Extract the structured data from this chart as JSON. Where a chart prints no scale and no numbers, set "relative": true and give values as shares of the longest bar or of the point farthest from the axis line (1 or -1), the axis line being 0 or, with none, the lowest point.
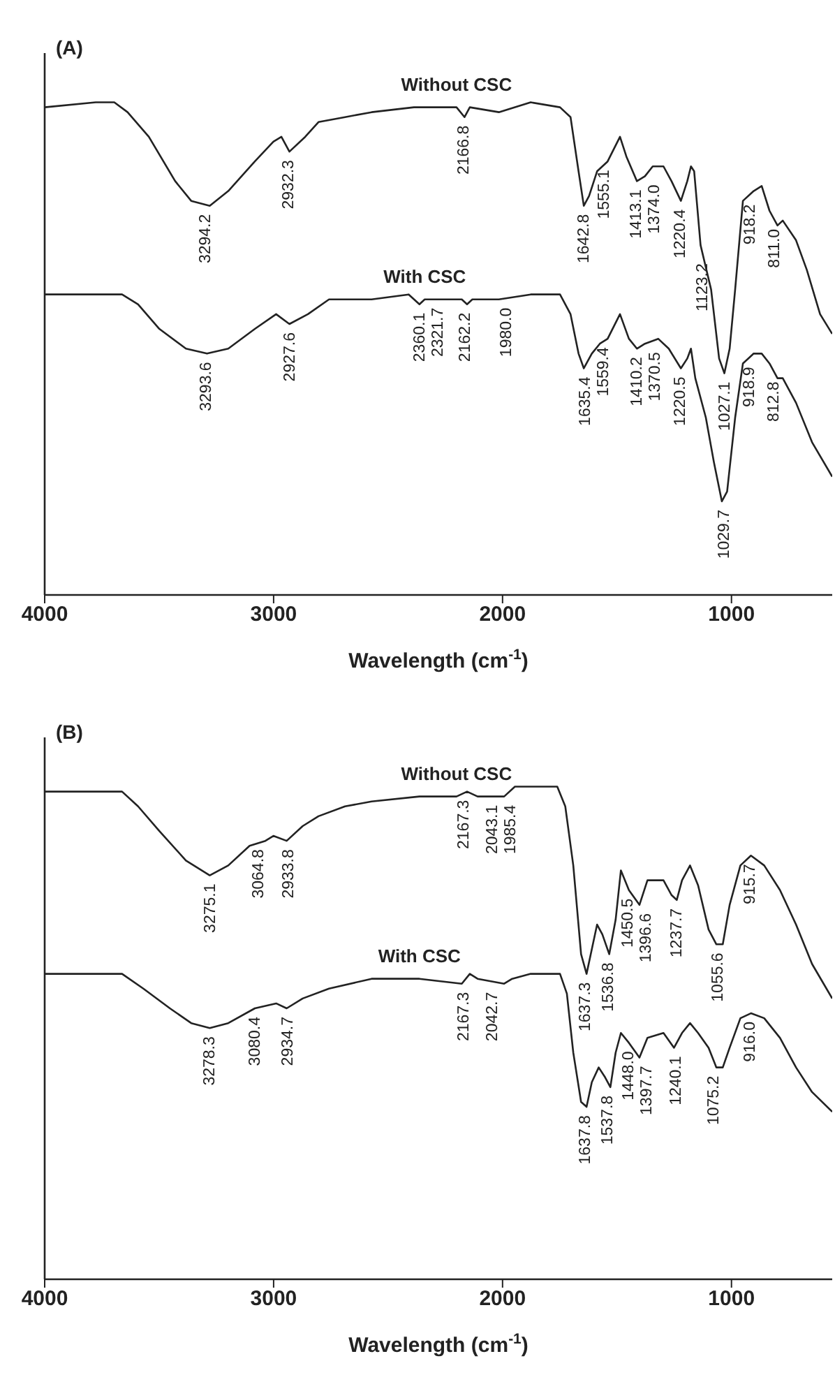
{
  "chart_data": [
    {
      "type": "line",
      "title": "(A)",
      "xlabel": "Wavelength (cm$^{-1}$)",
      "xlim": [
        4000,
        560
      ],
      "xticks": [
        4000,
        3000,
        2000,
        1000
      ],
      "relative": true,
      "tick_labels": "x",
      "series": [
        {
          "name": "Without CSC",
          "color": "#222222",
          "x": [
            4000,
            3777,
            3696,
            3638,
            3545,
            3430,
            3360,
            3279,
            3198,
            3082,
            3001,
            2966,
            2931,
            2862,
            2804,
            2688,
            2572,
            2387,
            2201,
            2166,
            2143,
            2016,
            1877,
            1749,
            1703,
            1668,
            1645,
            1622,
            1587,
            1541,
            1487,
            1459,
            1413,
            1378,
            1344,
            1297,
            1262,
            1221,
            1193,
            1177,
            1163,
            1135,
            1089,
            1054,
            1031,
            1008,
            984,
            950,
            903,
            868,
            834,
            799,
            776,
            718,
            671,
            613,
            560
          ],
          "values": [
            0.99,
            1.0,
            1.0,
            0.98,
            0.93,
            0.84,
            0.8,
            0.79,
            0.82,
            0.88,
            0.92,
            0.93,
            0.9,
            0.93,
            0.96,
            0.97,
            0.98,
            0.99,
            0.99,
            0.97,
            0.99,
            0.98,
            1.0,
            0.99,
            0.97,
            0.86,
            0.79,
            0.81,
            0.86,
            0.88,
            0.93,
            0.89,
            0.84,
            0.85,
            0.87,
            0.87,
            0.84,
            0.8,
            0.84,
            0.87,
            0.86,
            0.71,
            0.62,
            0.48,
            0.45,
            0.5,
            0.62,
            0.8,
            0.82,
            0.83,
            0.78,
            0.75,
            0.76,
            0.72,
            0.66,
            0.57,
            0.53
          ]
        },
        {
          "name": "With CSC",
          "color": "#222222",
          "x": [
            4000,
            3662,
            3592,
            3499,
            3383,
            3291,
            3198,
            3082,
            2989,
            2931,
            2850,
            2758,
            2572,
            2410,
            2363,
            2340,
            2178,
            2155,
            2132,
            2016,
            1877,
            1749,
            1703,
            1668,
            1645,
            1610,
            1575,
            1541,
            1487,
            1448,
            1413,
            1378,
            1320,
            1274,
            1221,
            1193,
            1177,
            1158,
            1112,
            1077,
            1042,
            1019,
            984,
            950,
            903,
            868,
            834,
            799,
            776,
            718,
            648,
            560
          ],
          "values": [
            0.61,
            0.61,
            0.59,
            0.54,
            0.5,
            0.49,
            0.5,
            0.54,
            0.57,
            0.55,
            0.57,
            0.6,
            0.6,
            0.61,
            0.59,
            0.6,
            0.6,
            0.59,
            0.6,
            0.6,
            0.61,
            0.61,
            0.57,
            0.49,
            0.46,
            0.49,
            0.51,
            0.52,
            0.57,
            0.52,
            0.5,
            0.51,
            0.52,
            0.5,
            0.46,
            0.48,
            0.5,
            0.44,
            0.36,
            0.27,
            0.19,
            0.21,
            0.36,
            0.47,
            0.49,
            0.49,
            0.47,
            0.44,
            0.44,
            0.39,
            0.31,
            0.24
          ]
        }
      ],
      "annotations": [
        {
          "text": "3294.2",
          "x": 3294.2,
          "y": 0.79
        },
        {
          "text": "2932.3",
          "x": 2932.3,
          "y": 0.9
        },
        {
          "text": "2166.8",
          "x": 2166.8,
          "y": 0.97
        },
        {
          "text": "1642.8",
          "x": 1642.8,
          "y": 0.79
        },
        {
          "text": "1555.1",
          "x": 1555.1,
          "y": 0.88
        },
        {
          "text": "1413.1",
          "x": 1413.1,
          "y": 0.84
        },
        {
          "text": "1374.0",
          "x": 1374.0,
          "y": 0.85
        },
        {
          "text": "1220.4",
          "x": 1220.4,
          "y": 0.8
        },
        {
          "text": "1123.2",
          "x": 1123.2,
          "y": 0.69
        },
        {
          "text": "1027.1",
          "x": 1027.1,
          "y": 0.45
        },
        {
          "text": "918.2",
          "x": 918.2,
          "y": 0.81
        },
        {
          "text": "811.0",
          "x": 811.0,
          "y": 0.76
        },
        {
          "text": "3293.6",
          "x": 3293.6,
          "y": 0.49
        },
        {
          "text": "2927.6",
          "x": 2927.6,
          "y": 0.55
        },
        {
          "text": "2360.1",
          "x": 2360.1,
          "y": 0.59
        },
        {
          "text": "2321.7",
          "x": 2321.7,
          "y": 0.6
        },
        {
          "text": "2162.2",
          "x": 2162.2,
          "y": 0.59
        },
        {
          "text": "1980.0",
          "x": 1980.0,
          "y": 0.6
        },
        {
          "text": "1635.4",
          "x": 1635.4,
          "y": 0.46
        },
        {
          "text": "1559.4",
          "x": 1559.4,
          "y": 0.52
        },
        {
          "text": "1410.2",
          "x": 1410.2,
          "y": 0.5
        },
        {
          "text": "1370.5",
          "x": 1370.5,
          "y": 0.51
        },
        {
          "text": "1220.5",
          "x": 1220.5,
          "y": 0.46
        },
        {
          "text": "1029.7",
          "x": 1029.7,
          "y": 0.19
        },
        {
          "text": "918.9",
          "x": 918.9,
          "y": 0.48
        },
        {
          "text": "812.8",
          "x": 812.8,
          "y": 0.45
        }
      ]
    },
    {
      "type": "line",
      "title": "(B)",
      "xlabel": "Wavelength (cm$^{-1}$)",
      "xlim": [
        4000,
        560
      ],
      "xticks": [
        4000,
        3000,
        2000,
        1000
      ],
      "relative": true,
      "tick_labels": "x",
      "series": [
        {
          "name": "Without CSC",
          "color": "#222222",
          "x": [
            4000,
            3662,
            3592,
            3499,
            3383,
            3279,
            3198,
            3105,
            3036,
            3001,
            2943,
            2873,
            2804,
            2688,
            2572,
            2363,
            2201,
            2155,
            2109,
            1993,
            1946,
            1877,
            1761,
            1726,
            1691,
            1657,
            1633,
            1610,
            1587,
            1564,
            1534,
            1506,
            1483,
            1448,
            1402,
            1367,
            1297,
            1262,
            1239,
            1216,
            1181,
            1146,
            1100,
            1066,
            1038,
            1008,
            961,
            915,
            857,
            788,
            718,
            648,
            560
          ],
          "values": [
            0.99,
            0.99,
            0.96,
            0.91,
            0.85,
            0.82,
            0.84,
            0.88,
            0.89,
            0.9,
            0.89,
            0.92,
            0.94,
            0.96,
            0.97,
            0.98,
            0.98,
            0.99,
            0.98,
            0.98,
            1.0,
            1.0,
            1.0,
            0.96,
            0.84,
            0.66,
            0.62,
            0.67,
            0.72,
            0.7,
            0.66,
            0.73,
            0.83,
            0.79,
            0.76,
            0.81,
            0.81,
            0.78,
            0.77,
            0.81,
            0.84,
            0.8,
            0.71,
            0.68,
            0.68,
            0.76,
            0.84,
            0.86,
            0.84,
            0.79,
            0.72,
            0.64,
            0.57
          ]
        },
        {
          "name": "With CSC",
          "color": "#222222",
          "x": [
            4000,
            3662,
            3569,
            3453,
            3360,
            3279,
            3198,
            3082,
            2989,
            2943,
            2873,
            2758,
            2572,
            2363,
            2178,
            2143,
            2109,
            1993,
            1958,
            1877,
            1749,
            1719,
            1691,
            1657,
            1633,
            1610,
            1580,
            1552,
            1529,
            1506,
            1483,
            1448,
            1402,
            1367,
            1297,
            1251,
            1216,
            1181,
            1146,
            1100,
            1066,
            1038,
            1008,
            961,
            915,
            857,
            788,
            718,
            648,
            560
          ],
          "values": [
            0.62,
            0.62,
            0.59,
            0.55,
            0.52,
            0.51,
            0.52,
            0.55,
            0.56,
            0.55,
            0.57,
            0.59,
            0.61,
            0.61,
            0.6,
            0.62,
            0.61,
            0.6,
            0.61,
            0.62,
            0.62,
            0.58,
            0.46,
            0.36,
            0.35,
            0.4,
            0.43,
            0.41,
            0.39,
            0.46,
            0.5,
            0.48,
            0.45,
            0.49,
            0.5,
            0.47,
            0.5,
            0.52,
            0.5,
            0.47,
            0.43,
            0.43,
            0.47,
            0.53,
            0.54,
            0.53,
            0.49,
            0.43,
            0.38,
            0.34
          ]
        }
      ],
      "annotations": [
        {
          "text": "3275.1",
          "x": 3275.1,
          "y": 0.82
        },
        {
          "text": "3064.8",
          "x": 3064.8,
          "y": 0.89
        },
        {
          "text": "2933.8",
          "x": 2933.8,
          "y": 0.89
        },
        {
          "text": "2167.3",
          "x": 2167.3,
          "y": 0.99
        },
        {
          "text": "2043.1",
          "x": 2043.1,
          "y": 0.98
        },
        {
          "text": "1985.4",
          "x": 1985.4,
          "y": 0.98
        },
        {
          "text": "1637.3",
          "x": 1637.3,
          "y": 0.62
        },
        {
          "text": "1536.8",
          "x": 1536.8,
          "y": 0.66
        },
        {
          "text": "1450.5",
          "x": 1450.5,
          "y": 0.79
        },
        {
          "text": "1396.6",
          "x": 1396.6,
          "y": 0.76
        },
        {
          "text": "1237.7",
          "x": 1237.7,
          "y": 0.77
        },
        {
          "text": "1055.6",
          "x": 1055.6,
          "y": 0.68
        },
        {
          "text": "915.7",
          "x": 915.7,
          "y": 0.86
        },
        {
          "text": "3278.3",
          "x": 3278.3,
          "y": 0.51
        },
        {
          "text": "3080.4",
          "x": 3080.4,
          "y": 0.55
        },
        {
          "text": "2934.7",
          "x": 2934.7,
          "y": 0.55
        },
        {
          "text": "2167.3",
          "x": 2167.3,
          "y": 0.6
        },
        {
          "text": "2042.7",
          "x": 2042.7,
          "y": 0.6
        },
        {
          "text": "1637.8",
          "x": 1637.8,
          "y": 0.35
        },
        {
          "text": "1537.8",
          "x": 1537.8,
          "y": 0.39
        },
        {
          "text": "1448.0",
          "x": 1448.0,
          "y": 0.48
        },
        {
          "text": "1397.7",
          "x": 1397.7,
          "y": 0.45
        },
        {
          "text": "1240.1",
          "x": 1240.1,
          "y": 0.47
        },
        {
          "text": "1075.2",
          "x": 1075.2,
          "y": 0.43
        },
        {
          "text": "916.0",
          "x": 916.0,
          "y": 0.54
        }
      ]
    }
  ]
}
